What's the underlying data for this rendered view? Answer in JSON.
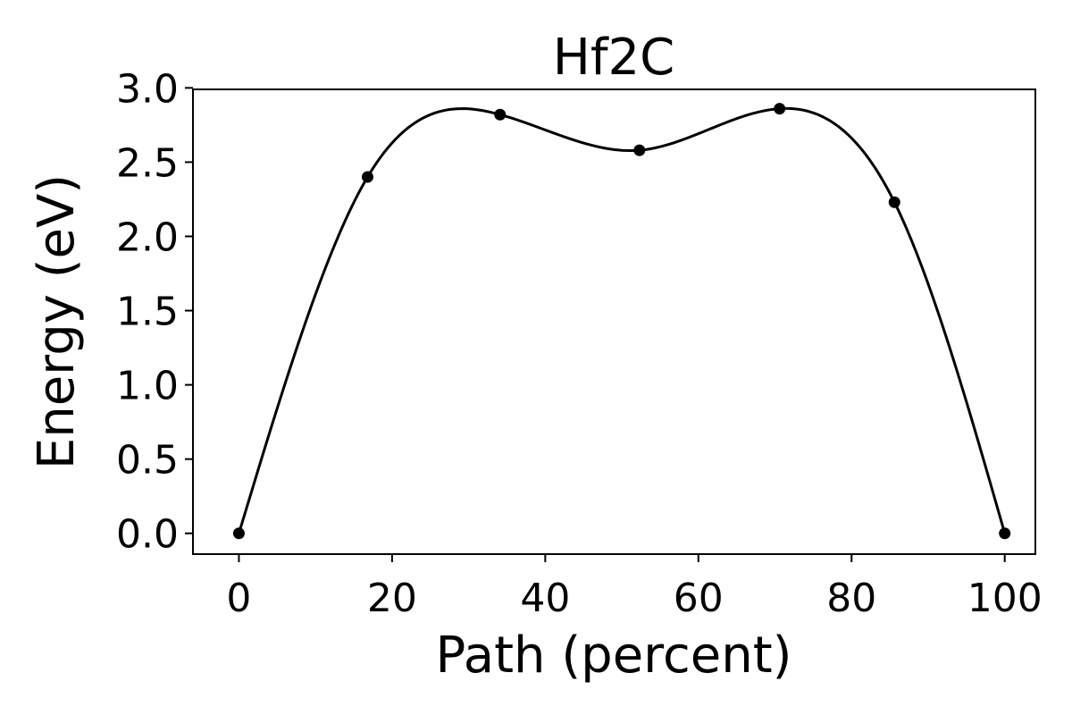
{
  "chart_data": {
    "type": "line",
    "title": "Hf2C",
    "xlabel": "Path (percent)",
    "ylabel": "Energy (eV)",
    "xlim": [
      -6,
      104
    ],
    "ylim": [
      -0.14,
      2.99
    ],
    "xticks": [
      0,
      20,
      40,
      60,
      80,
      100
    ],
    "xtick_labels": [
      "0",
      "20",
      "40",
      "60",
      "80",
      "100"
    ],
    "yticks": [
      0.0,
      0.5,
      1.0,
      1.5,
      2.0,
      2.5,
      3.0
    ],
    "ytick_labels": [
      "0.0",
      "0.5",
      "1.0",
      "1.5",
      "2.0",
      "2.5",
      "3.0"
    ],
    "grid": false,
    "legend": "none",
    "series": [
      {
        "x": [
          0,
          16.8,
          34.1,
          52.3,
          70.6,
          85.6,
          100
        ],
        "y": [
          0.0,
          2.4,
          2.82,
          2.58,
          2.86,
          2.23,
          0.0
        ],
        "color": "#000000",
        "marker": "circle",
        "line": "smooth"
      }
    ]
  }
}
